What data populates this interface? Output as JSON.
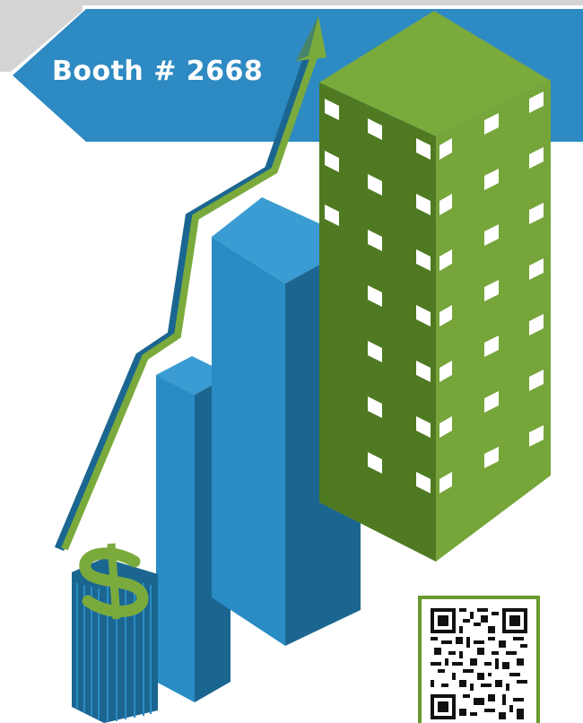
{
  "banner": {
    "booth_label": "Booth # 2668"
  },
  "colors": {
    "blue_light": "#2a8cc4",
    "blue_dark": "#1b6690",
    "blue_banner": "#2e8ac2",
    "green_light": "#7aaa3c",
    "green_dark": "#4f7a22",
    "gray_band": "#d4d4d4"
  },
  "icons": [
    "dollar-sign-icon",
    "growth-arrow-icon",
    "qr-code-icon",
    "office-building-icon"
  ]
}
